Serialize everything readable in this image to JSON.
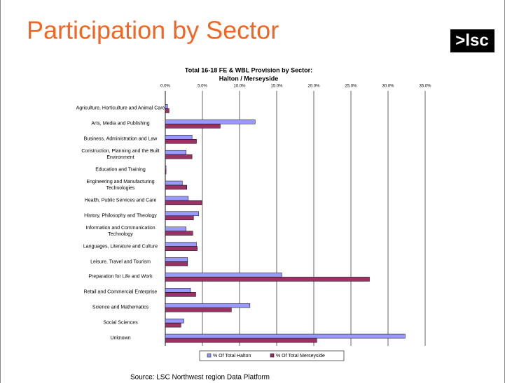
{
  "title": "Participation by Sector",
  "logo": ">lsc",
  "source": "Source: LSC Northwest region Data Platform",
  "chart_data": {
    "type": "hbar",
    "title": "Total 16-18 FE & WBL Provision by Sector:",
    "subtitle": "Halton / Merseyside",
    "categories": [
      "Agriculture, Horticulture and Animal Care",
      "Arts, Media and Publishing",
      "Business, Administration and Law",
      "Construction, Planning and the Built Environment",
      "Education and Training",
      "Engineering and Manufacturing Technologies",
      "Health, Public Services and Care",
      "History, Philosophy and Theology",
      "Information and Communication Technology",
      "Languages, Literature and Culture",
      "Leisure, Travel and Tourism",
      "Preparation for Life and Work",
      "Retail and Commercial Enterprise",
      "Science and Mathematics",
      "Social Sciences",
      "Unknown"
    ],
    "series": [
      {
        "name": "% Of Total Halton",
        "color": "#9999ff",
        "values": [
          0.3,
          12.1,
          3.6,
          2.8,
          0.1,
          2.3,
          3.1,
          4.5,
          2.8,
          4.2,
          3.0,
          15.7,
          3.4,
          11.4,
          2.5,
          32.3
        ]
      },
      {
        "name": "% Of Total Merseyside",
        "color": "#993366",
        "values": [
          0.5,
          7.4,
          4.2,
          3.6,
          0.1,
          2.9,
          4.9,
          3.8,
          3.7,
          4.3,
          3.0,
          27.5,
          4.1,
          8.9,
          2.1,
          20.4
        ]
      }
    ],
    "xlim": [
      0,
      35
    ],
    "xticks": [
      {
        "value": 0,
        "label": "0.0%"
      },
      {
        "value": 5,
        "label": "5.0%"
      },
      {
        "value": 10,
        "label": "10.0%"
      },
      {
        "value": 15,
        "label": "15.0%"
      },
      {
        "value": 20,
        "label": "20.0%"
      },
      {
        "value": 25,
        "label": "25.0%"
      },
      {
        "value": 30,
        "label": "30.0%"
      },
      {
        "value": 35,
        "label": "35.0%"
      }
    ],
    "grid": true,
    "legend": "bottom"
  }
}
